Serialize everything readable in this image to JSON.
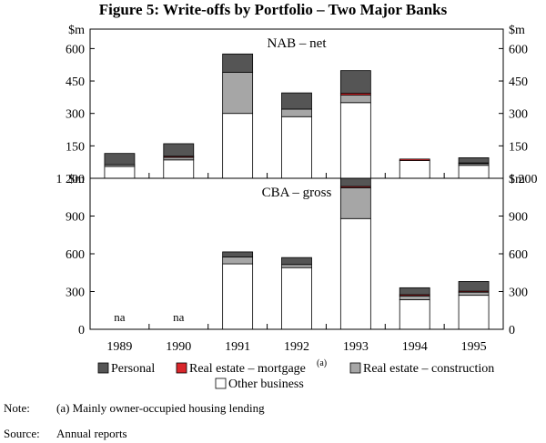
{
  "title": "Figure 5: Write-offs by Portfolio – Two Major Banks",
  "colors": {
    "personal": "#555555",
    "mortgage": "#d9262b",
    "construction": "#a6a6a6",
    "other": "#ffffff",
    "stroke": "#000000"
  },
  "chart_data": [
    {
      "type": "bar",
      "stacked": true,
      "title": "NAB – net",
      "unit_label": "$m",
      "ylim": [
        0,
        690
      ],
      "yticks": [
        0,
        150,
        300,
        450,
        600
      ],
      "ytick_labels": [
        "$m",
        "150",
        "300",
        "450",
        "600"
      ],
      "categories": [
        "1989",
        "1990",
        "1991",
        "1992",
        "1993",
        "1994",
        "1995"
      ],
      "series": [
        {
          "name": "Other business",
          "values": [
            55,
            85,
            300,
            285,
            350,
            82,
            60
          ]
        },
        {
          "name": "Real estate – construction",
          "values": [
            8,
            12,
            190,
            35,
            35,
            0,
            8
          ]
        },
        {
          "name": "Real estate – mortgage",
          "values": [
            0,
            5,
            0,
            0,
            8,
            7,
            3
          ]
        },
        {
          "name": "Personal",
          "values": [
            52,
            58,
            85,
            75,
            105,
            0,
            24
          ]
        }
      ],
      "annotations": []
    },
    {
      "type": "bar",
      "stacked": true,
      "title": "CBA – gross",
      "unit_label": "$m",
      "ylim": [
        0,
        1200
      ],
      "yticks": [
        0,
        300,
        600,
        900,
        1200
      ],
      "ytick_labels": [
        "0",
        "300",
        "600",
        "900",
        "1 200"
      ],
      "categories": [
        "1989",
        "1990",
        "1991",
        "1992",
        "1993",
        "1994",
        "1995"
      ],
      "series": [
        {
          "name": "Other business",
          "values": [
            0,
            0,
            520,
            490,
            880,
            235,
            270
          ]
        },
        {
          "name": "Real estate – construction",
          "values": [
            0,
            0,
            55,
            25,
            245,
            30,
            25
          ]
        },
        {
          "name": "Real estate – mortgage",
          "values": [
            0,
            0,
            0,
            0,
            10,
            10,
            8
          ]
        },
        {
          "name": "Personal",
          "values": [
            0,
            0,
            40,
            55,
            65,
            55,
            77
          ]
        }
      ],
      "annotations": [
        {
          "category": "1989",
          "text": "na"
        },
        {
          "category": "1990",
          "text": "na"
        }
      ]
    }
  ],
  "legend": {
    "personal": "Personal",
    "mortgage": "Real estate – mortgage",
    "mortgage_sup": "(a)",
    "construction": "Real estate – construction",
    "other": "Other business"
  },
  "notes": {
    "note_label": "Note:",
    "note_text": "(a) Mainly owner-occupied housing lending",
    "source_label": "Source:",
    "source_text": "Annual reports"
  }
}
